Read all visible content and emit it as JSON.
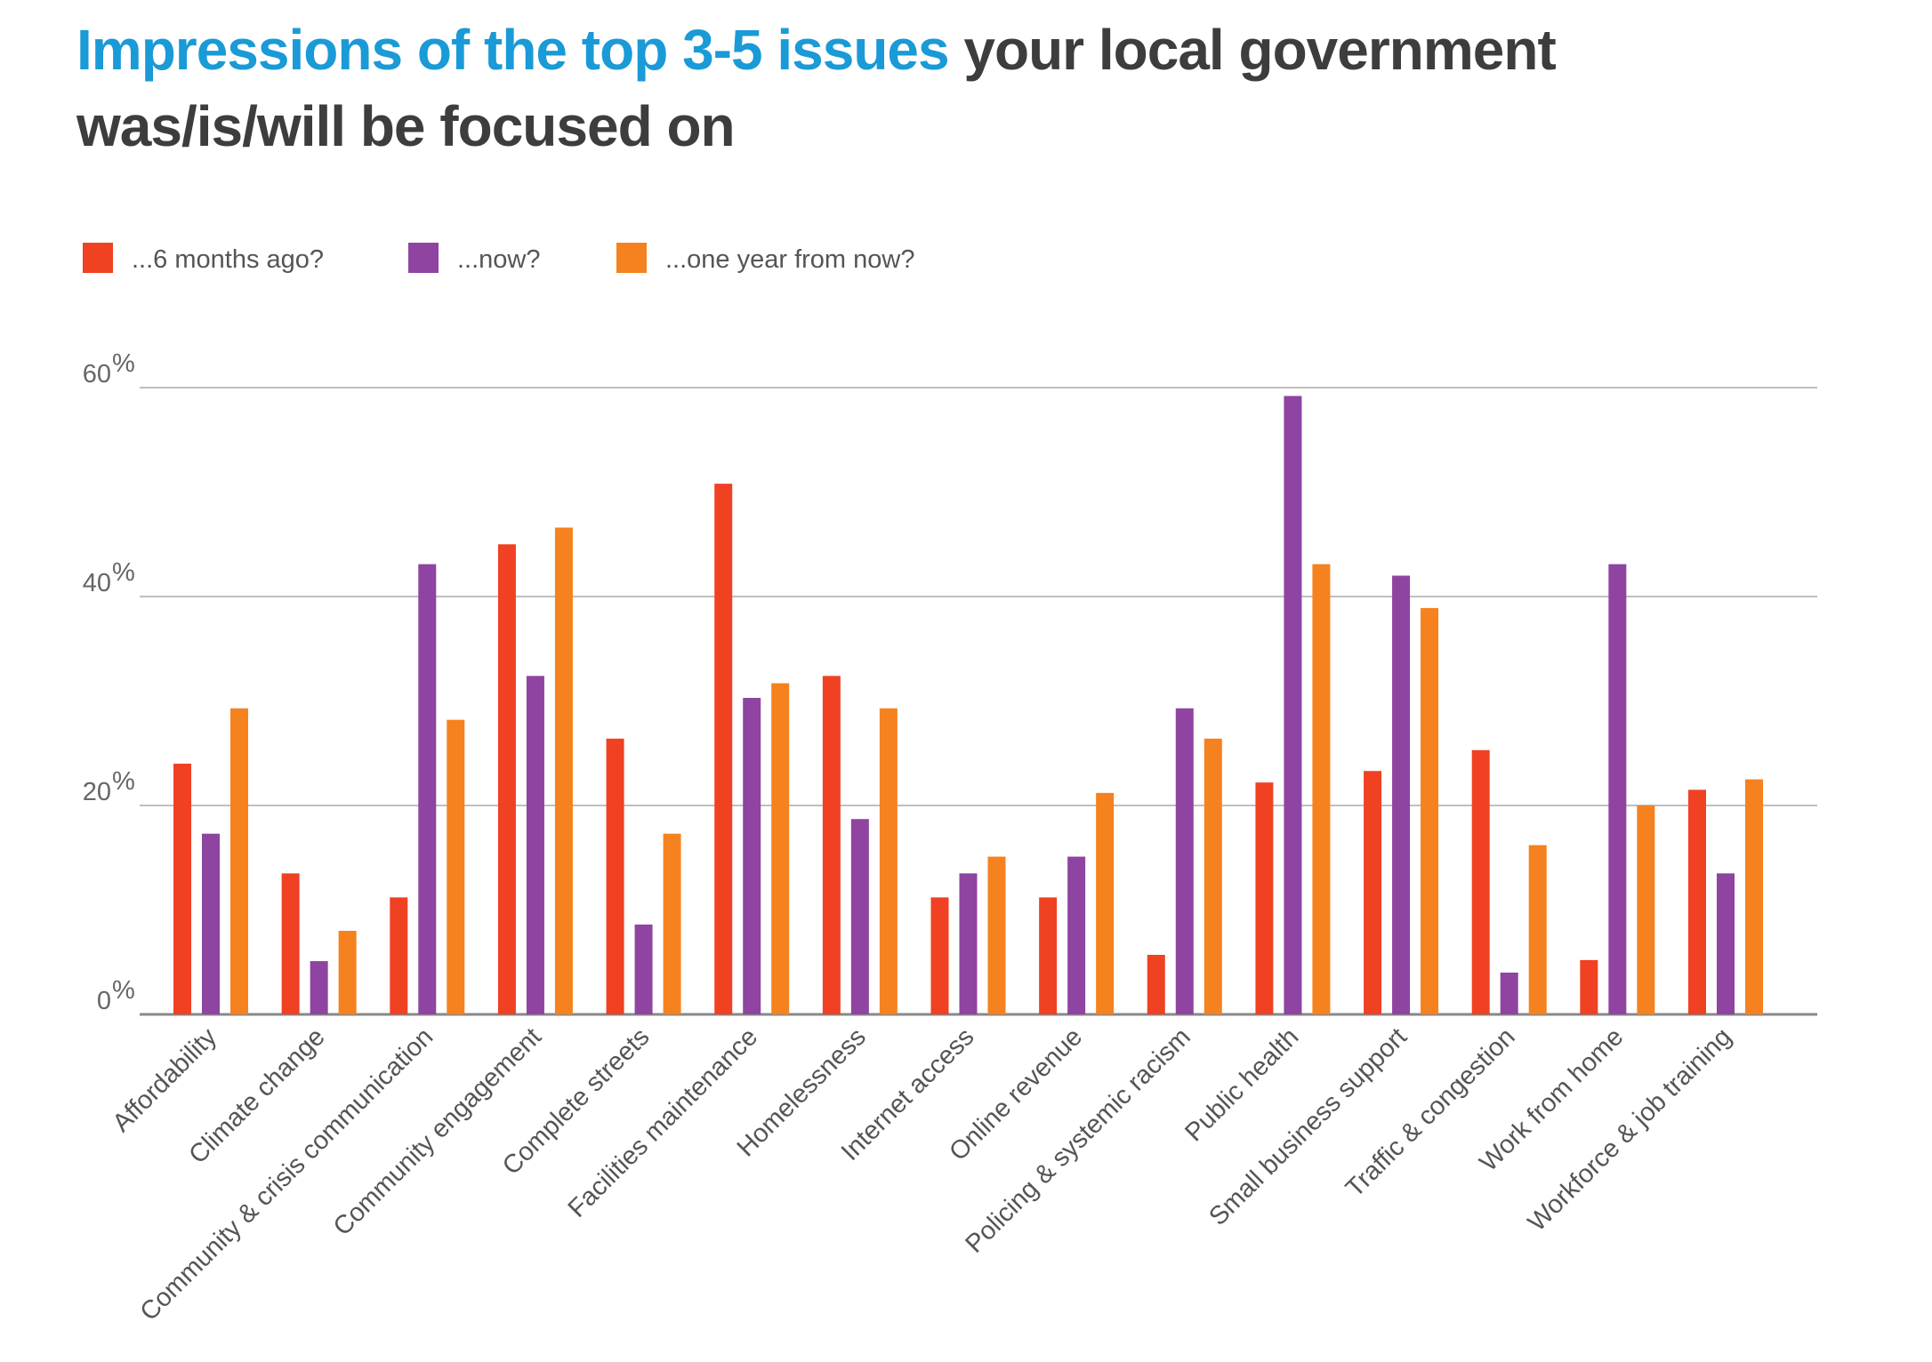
{
  "chart_data": {
    "type": "bar",
    "title_highlight": "Impressions of the top 3-5 issues",
    "title_rest_line1": " your local government",
    "title_line2": "was/is/will be focused on",
    "categories": [
      "Affordability",
      "Climate change",
      "Community & crisis communication",
      "Community engagement",
      "Complete streets",
      "Facilities maintenance",
      "Homelessness",
      "Internet access",
      "Online revenue",
      "Policing & systemic racism",
      "Public health",
      "Small business support",
      "Traffic & congestion",
      "Work from home",
      "Workforce & job training"
    ],
    "series": [
      {
        "name": "...6 months ago?",
        "color": "#f04123",
        "values": [
          24,
          13.5,
          11.2,
          45,
          26.4,
          50.8,
          32.4,
          11.2,
          11.2,
          5.7,
          22.2,
          23.3,
          25.3,
          5.2,
          21.5
        ]
      },
      {
        "name": "...now?",
        "color": "#8e44a0",
        "values": [
          17.3,
          5.1,
          43.1,
          32.4,
          8.6,
          30.3,
          18.7,
          13.5,
          15.1,
          29.3,
          59.2,
          42,
          4,
          43.1,
          13.5
        ]
      },
      {
        "name": "...one year from now?",
        "color": "#f5821f",
        "values": [
          29.3,
          8,
          28.2,
          46.6,
          17.3,
          31.7,
          29.3,
          15.1,
          21.2,
          26.4,
          43.1,
          38.9,
          16.2,
          20,
          22.5
        ]
      }
    ],
    "yticks": [
      0,
      20,
      40,
      60
    ],
    "ytick_labels": [
      "0",
      "20",
      "40",
      "60"
    ],
    "ytick_suffix": "%",
    "ylim": [
      0,
      60
    ],
    "grid": true,
    "legend_position": "top-left",
    "xlabel": "",
    "ylabel": ""
  }
}
